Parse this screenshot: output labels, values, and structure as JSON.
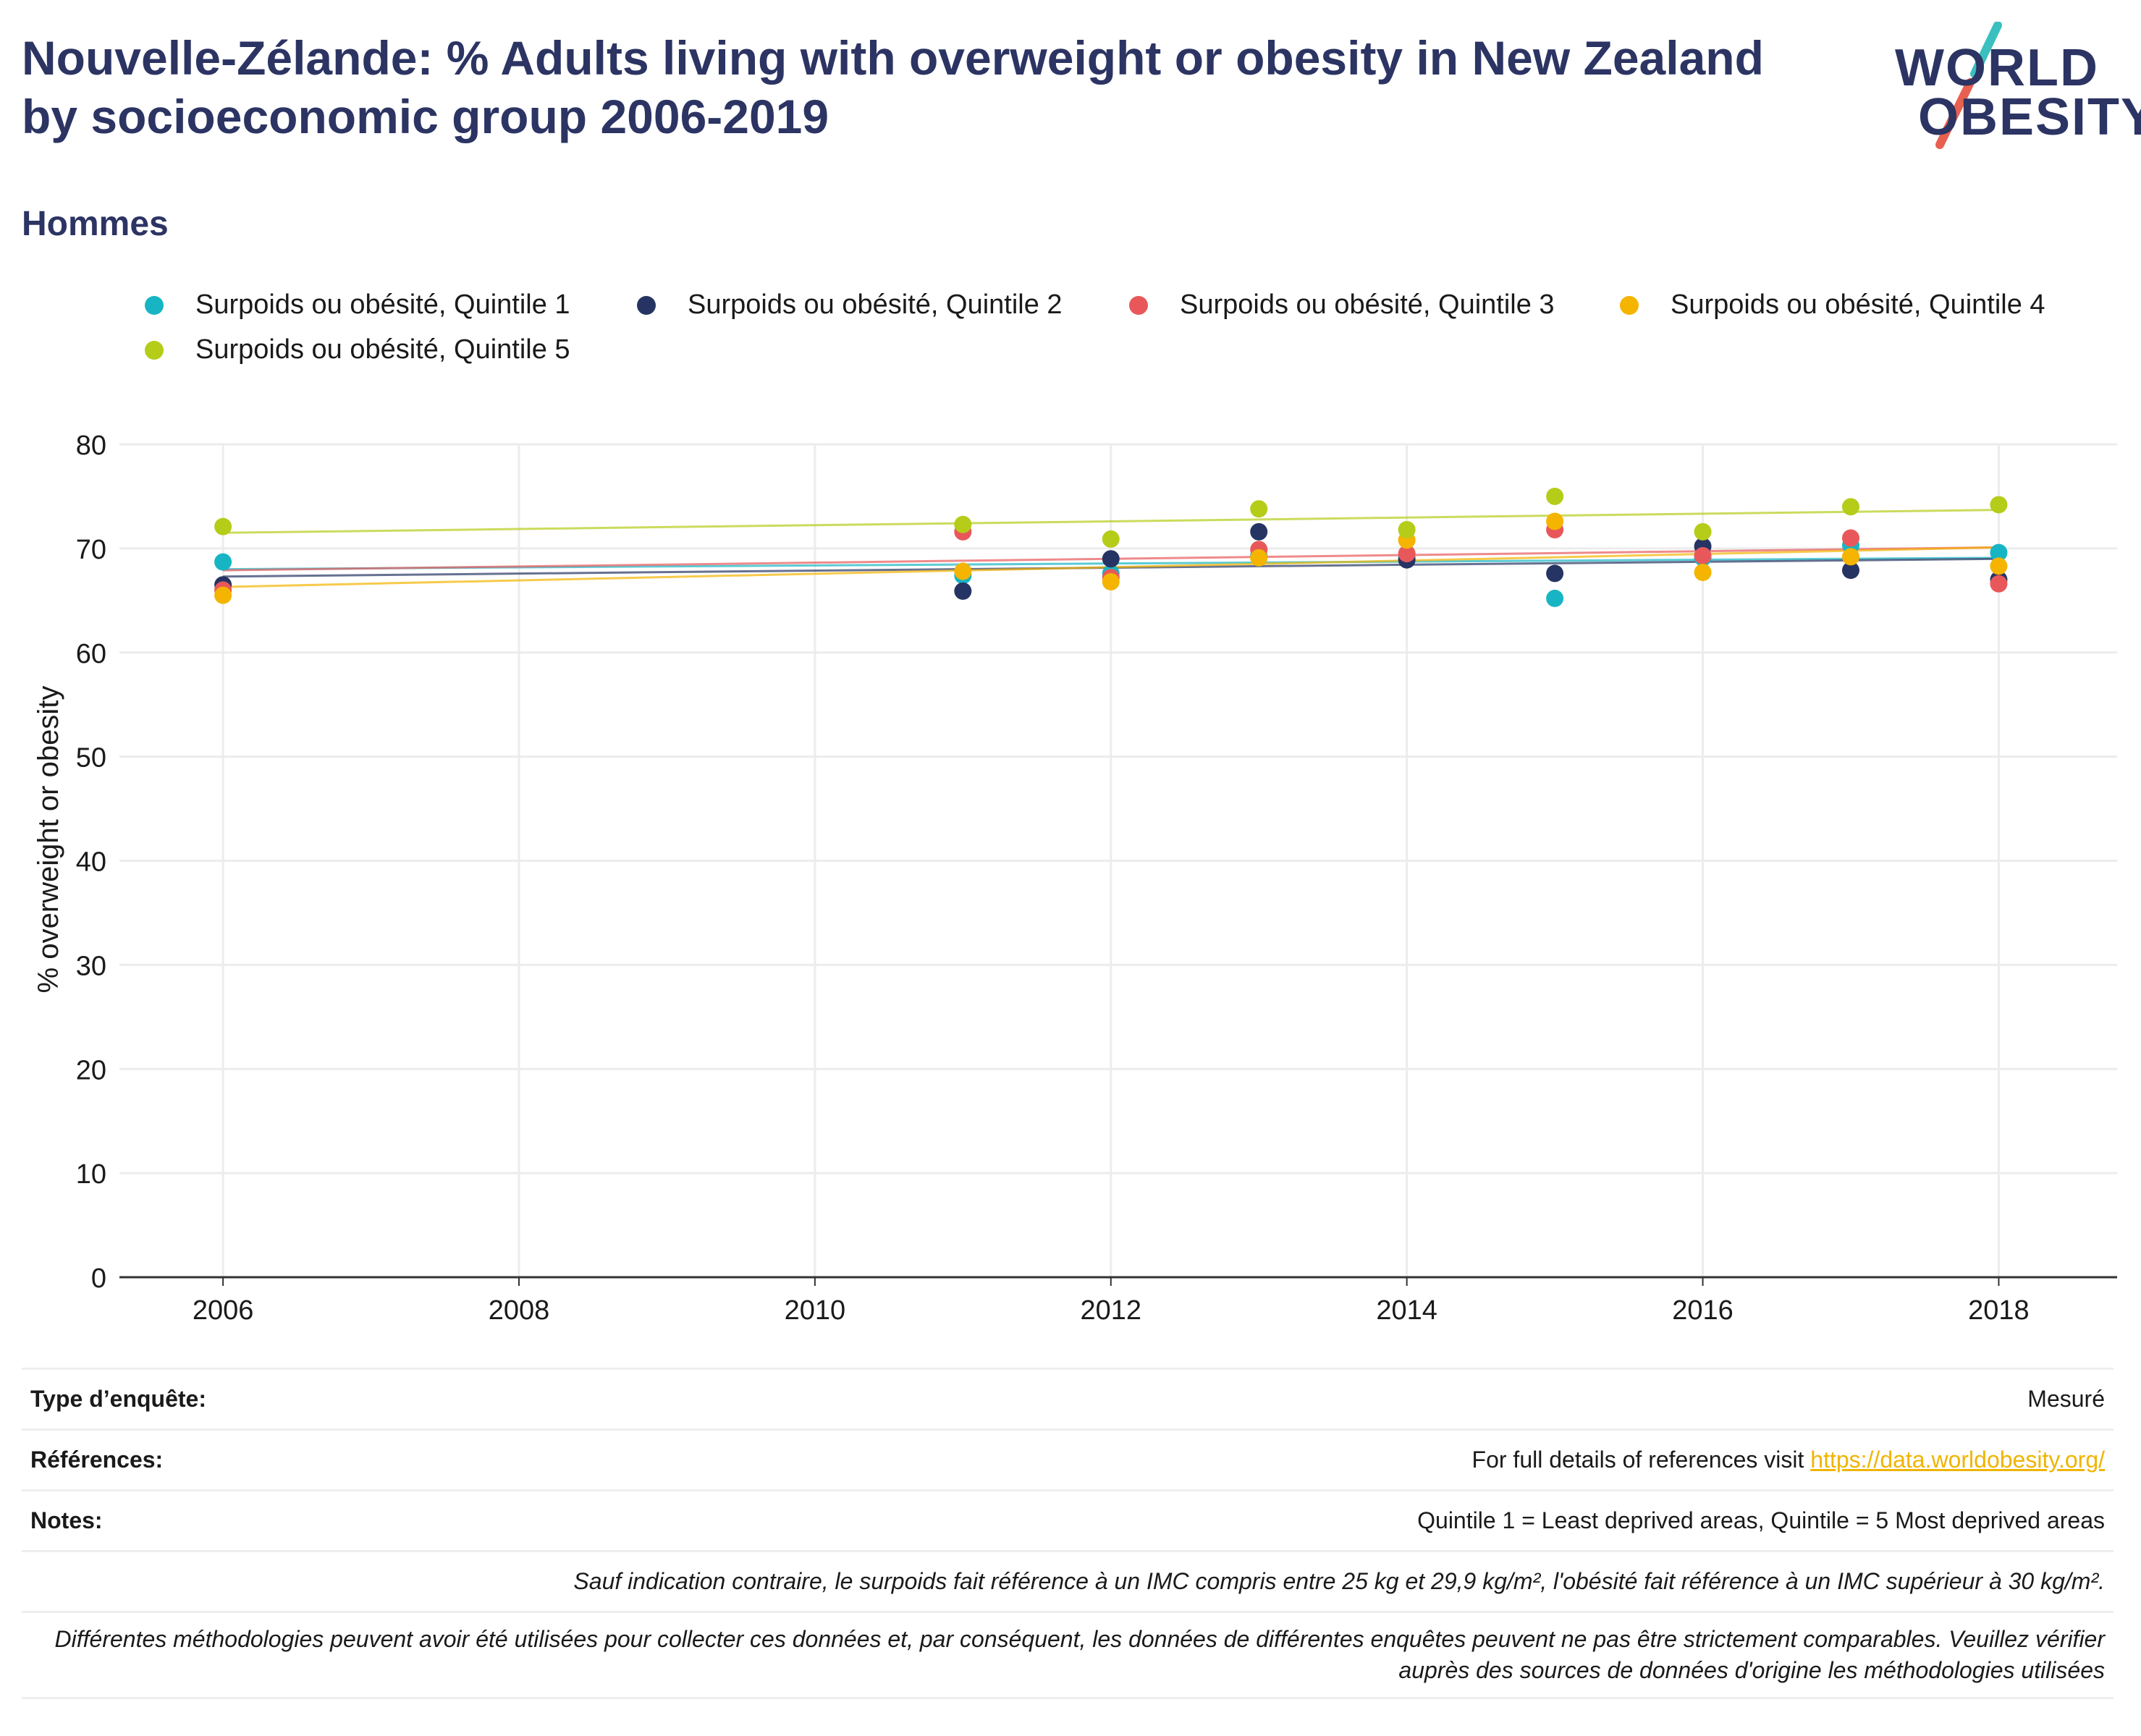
{
  "title": "Nouvelle-Zélande: % Adults living with overweight or obesity in New Zealand by socioeconomic group 2006-2019",
  "subtitle": "Hommes",
  "logo": {
    "line1": "WORLD",
    "line2": "OBESITY",
    "colors": {
      "text": "#2c3463",
      "slash_top": "#3bbfbf",
      "slash_bottom": "#e8604f"
    }
  },
  "legend": [
    {
      "label": "Surpoids ou obésité, Quintile 1",
      "color": "#17b5c3"
    },
    {
      "label": "Surpoids ou obésité, Quintile 2",
      "color": "#263463"
    },
    {
      "label": "Surpoids ou obésité, Quintile 3",
      "color": "#e8585a"
    },
    {
      "label": "Surpoids ou obésité, Quintile 4",
      "color": "#f4b400"
    },
    {
      "label": "Surpoids ou obésité, Quintile 5",
      "color": "#b5cc18"
    }
  ],
  "chart_data": {
    "type": "scatter",
    "ylabel": "% overweight or obesity",
    "xlabel": "",
    "xlim": [
      2005.3,
      2018.8
    ],
    "ylim": [
      0,
      80
    ],
    "x_ticks": [
      2006,
      2008,
      2010,
      2012,
      2014,
      2016,
      2018
    ],
    "y_ticks": [
      0,
      10,
      20,
      30,
      40,
      50,
      60,
      70,
      80
    ],
    "grid": true,
    "trendlines": true,
    "legend_position": "top",
    "series": [
      {
        "name": "Surpoids ou obésité, Quintile 1",
        "color": "#17b5c3",
        "x": [
          2006,
          2011,
          2012,
          2013,
          2014,
          2015,
          2016,
          2017,
          2018
        ],
        "y": [
          68.7,
          67.4,
          67.6,
          69.3,
          69.1,
          65.2,
          69.1,
          70.3,
          69.6
        ],
        "trend": [
          68.0,
          69.1
        ]
      },
      {
        "name": "Surpoids ou obésité, Quintile 2",
        "color": "#263463",
        "x": [
          2006,
          2011,
          2012,
          2013,
          2014,
          2015,
          2016,
          2017,
          2018
        ],
        "y": [
          66.5,
          65.9,
          69.0,
          71.6,
          68.9,
          67.6,
          70.2,
          67.9,
          67.0
        ],
        "trend": [
          67.3,
          69.0
        ]
      },
      {
        "name": "Surpoids ou obésité, Quintile 3",
        "color": "#e8585a",
        "x": [
          2006,
          2011,
          2012,
          2013,
          2014,
          2015,
          2016,
          2017,
          2018
        ],
        "y": [
          66.0,
          71.6,
          67.2,
          69.9,
          69.5,
          71.8,
          69.3,
          71.0,
          66.6
        ],
        "trend": [
          67.9,
          70.1
        ]
      },
      {
        "name": "Surpoids ou obésité, Quintile 4",
        "color": "#f4b400",
        "x": [
          2006,
          2011,
          2012,
          2013,
          2014,
          2015,
          2016,
          2017,
          2018
        ],
        "y": [
          65.5,
          67.8,
          66.8,
          69.1,
          70.8,
          72.6,
          67.7,
          69.2,
          68.3
        ],
        "trend": [
          66.3,
          70.1
        ]
      },
      {
        "name": "Surpoids ou obésité, Quintile 5",
        "color": "#b5cc18",
        "x": [
          2006,
          2011,
          2012,
          2013,
          2014,
          2015,
          2016,
          2017,
          2018
        ],
        "y": [
          72.1,
          72.3,
          70.9,
          73.8,
          71.8,
          75.0,
          71.6,
          74.0,
          74.2
        ],
        "trend": [
          71.5,
          73.7
        ]
      }
    ]
  },
  "info": {
    "survey_label": "Type d’enquête:",
    "survey_value": "Mesuré",
    "references_label": "Références:",
    "references_text": "For full details of references visit ",
    "references_link": "https://data.worldobesity.org/",
    "notes_label": "Notes:",
    "notes_value": "Quintile 1 = Least deprived areas, Quintile = 5 Most deprived areas",
    "definition_note": "Sauf indication contraire, le surpoids fait référence à un IMC compris entre 25 kg et 29,9 kg/m², l'obésité fait référence à un IMC supérieur à 30 kg/m².",
    "methodology_note": "Différentes méthodologies peuvent avoir été utilisées pour collecter ces données et, par conséquent, les données de différentes enquêtes peuvent ne pas être strictement comparables. Veuillez vérifier auprès des sources de données d'origine les méthodologies utilisées"
  }
}
